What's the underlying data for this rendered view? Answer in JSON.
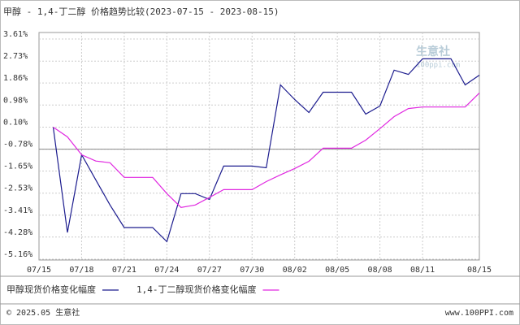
{
  "chart_data": {
    "type": "line",
    "title": "甲醇 - 1,4-丁二醇 价格趋势比较(2023-07-15 - 2023-08-15)",
    "categories": [
      "07/15",
      null,
      null,
      "07/18",
      null,
      null,
      "07/21",
      null,
      null,
      "07/24",
      null,
      null,
      "07/27",
      null,
      null,
      "07/30",
      null,
      null,
      "08/02",
      null,
      null,
      "08/05",
      null,
      null,
      "08/08",
      null,
      null,
      "08/11",
      null,
      null,
      null,
      "08/15"
    ],
    "series": [
      {
        "name": "甲醇现货价格变化幅度",
        "color": "#1c1c8e",
        "values": [
          null,
          0.1,
          -4.1,
          -1.0,
          -2.0,
          -3.0,
          -3.9,
          -3.9,
          -3.9,
          -4.46,
          -2.55,
          -2.55,
          -2.78,
          -1.45,
          -1.45,
          -1.45,
          -1.52,
          1.78,
          1.2,
          0.68,
          1.49,
          1.49,
          1.49,
          0.62,
          0.94,
          2.37,
          2.2,
          2.82,
          2.82,
          2.82,
          1.78,
          2.17
        ]
      },
      {
        "name": "1,4-丁二醇现货价格变化幅度",
        "color": "#e028e0",
        "values": [
          null,
          0.1,
          -0.29,
          -1.0,
          -1.25,
          -1.32,
          -1.9,
          -1.9,
          -1.9,
          -2.55,
          -3.1,
          -3.0,
          -2.7,
          -2.39,
          -2.39,
          -2.39,
          -2.07,
          -1.8,
          -1.55,
          -1.26,
          -0.74,
          -0.74,
          -0.74,
          -0.42,
          0.04,
          0.52,
          0.84,
          0.9,
          0.9,
          0.9,
          0.9,
          1.46
        ]
      }
    ],
    "ylim": [
      -5.16,
      3.61
    ],
    "yticks": [
      {
        "value": 3.61,
        "label": "3.61%"
      },
      {
        "value": 2.73,
        "label": "2.73%"
      },
      {
        "value": 1.86,
        "label": "1.86%"
      },
      {
        "value": 0.98,
        "label": "0.98%"
      },
      {
        "value": 0.1,
        "label": "0.10%"
      },
      {
        "value": -0.78,
        "label": "-0.78%"
      },
      {
        "value": -1.65,
        "label": "-1.65%"
      },
      {
        "value": -2.53,
        "label": "-2.53%"
      },
      {
        "value": -3.41,
        "label": "-3.41%"
      },
      {
        "value": -4.28,
        "label": "-4.28%"
      },
      {
        "value": -5.16,
        "label": "-5.16%"
      }
    ],
    "grid": true,
    "watermark": "生意社",
    "watermark_url": "100ppi.com",
    "footer_left": "© 2025.05 生意社",
    "footer_right": "www.100PPI.com"
  }
}
